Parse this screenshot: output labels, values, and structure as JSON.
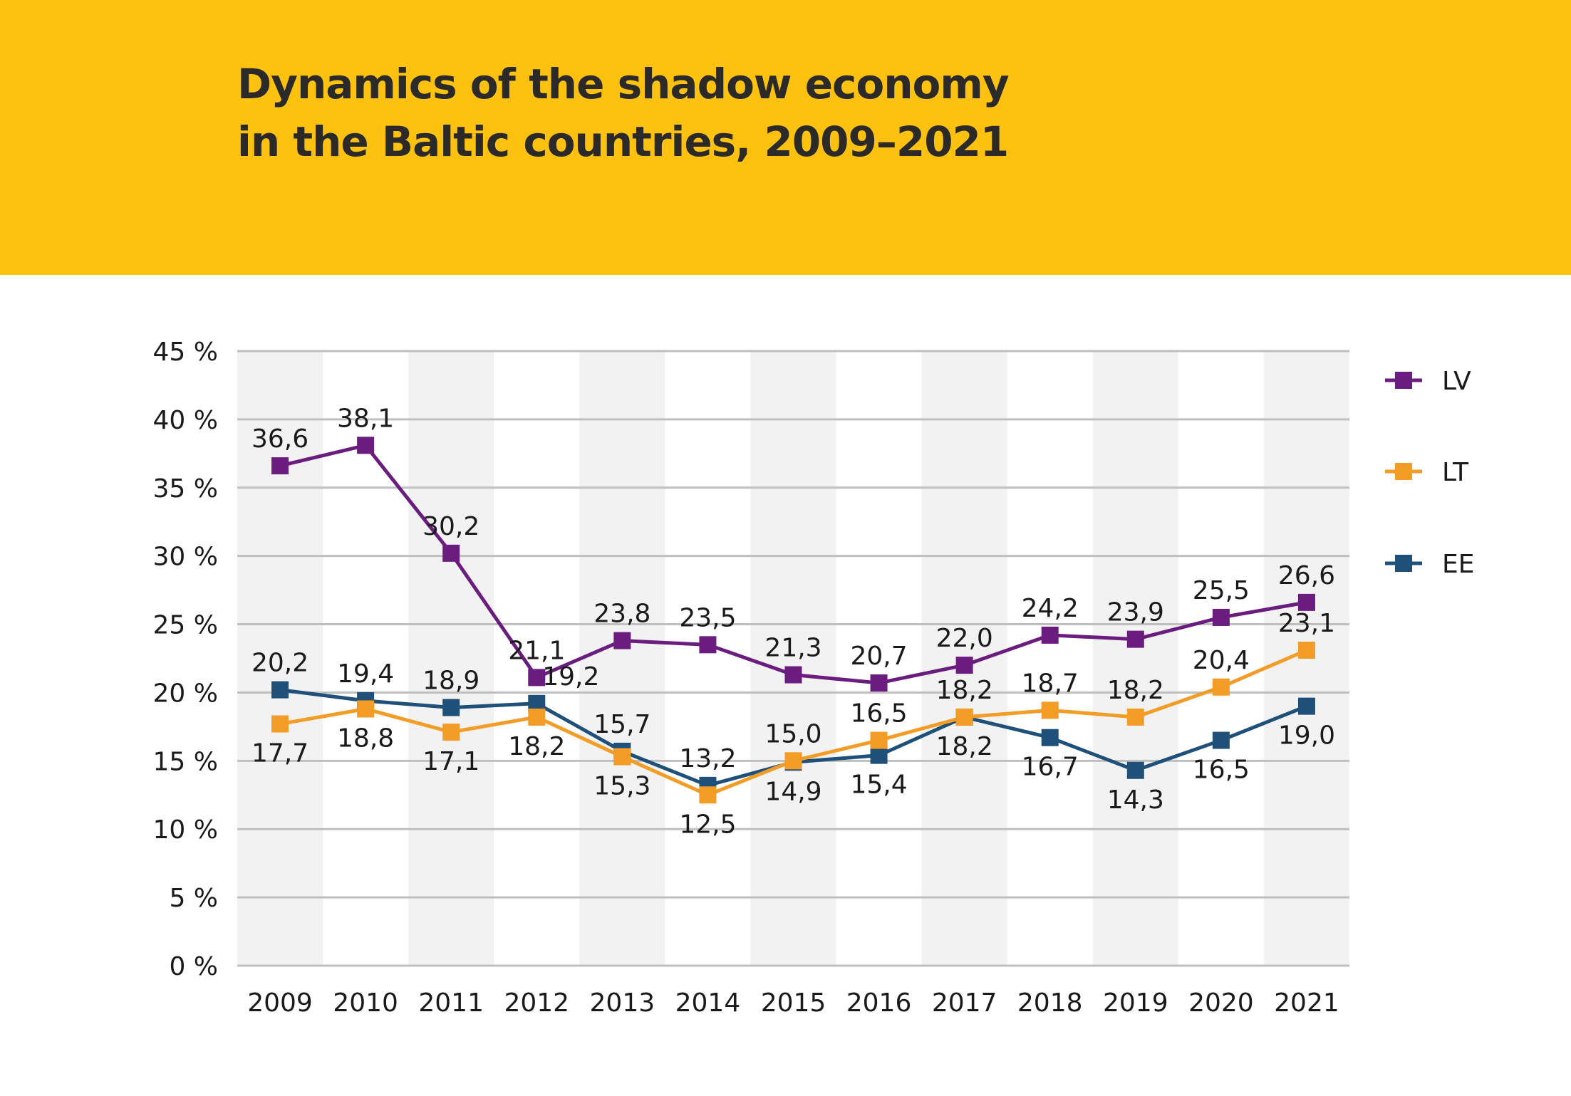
{
  "title_line1": "Dynamics of the shadow economy",
  "title_line2": "in the Baltic countries, 2009–2021",
  "colors": {
    "header_bg": "#FDC20F",
    "LV": "#6B1D7F",
    "LT": "#F39C26",
    "EE": "#1F5079",
    "band": "#F2F2F3",
    "grid": "#BFBFBF"
  },
  "chart_data": {
    "type": "line",
    "title": "Dynamics of the shadow economy in the Baltic countries, 2009–2021",
    "xlabel": "",
    "ylabel": "",
    "ylim": [
      0,
      45
    ],
    "yticks": [
      0,
      5,
      10,
      15,
      20,
      25,
      30,
      35,
      40,
      45
    ],
    "ytick_labels": [
      "0 %",
      "5 %",
      "10 %",
      "15 %",
      "20 %",
      "25 %",
      "30 %",
      "35 %",
      "40 %",
      "45 %"
    ],
    "categories": [
      "2009",
      "2010",
      "2011",
      "2012",
      "2013",
      "2014",
      "2015",
      "2016",
      "2017",
      "2018",
      "2019",
      "2020",
      "2021"
    ],
    "legend_position": "right",
    "series": [
      {
        "name": "LV",
        "values": [
          36.6,
          38.1,
          30.2,
          21.1,
          23.8,
          23.5,
          21.3,
          20.7,
          22.0,
          24.2,
          23.9,
          25.5,
          26.6
        ],
        "labels": [
          "36,6",
          "38,1",
          "30,2",
          "21,1",
          "23,8",
          "23,5",
          "21,3",
          "20,7",
          "22,0",
          "24,2",
          "23,9",
          "25,5",
          "26,6"
        ]
      },
      {
        "name": "LT",
        "values": [
          17.7,
          18.8,
          17.1,
          18.2,
          15.3,
          12.5,
          15.0,
          16.5,
          18.2,
          18.7,
          18.2,
          20.4,
          23.1
        ],
        "labels": [
          "17,7",
          "18,8",
          "17,1",
          "18,2",
          "15,3",
          "12,5",
          "15,0",
          "16,5",
          "18,2",
          "18,7",
          "18,2",
          "20,4",
          "23,1"
        ]
      },
      {
        "name": "EE",
        "values": [
          20.2,
          19.4,
          18.9,
          19.2,
          15.7,
          13.2,
          14.9,
          15.4,
          18.2,
          16.7,
          14.3,
          16.5,
          19.0
        ],
        "labels": [
          "20,2",
          "19,4",
          "18,9",
          "19,2",
          "15,7",
          "13,2",
          "14,9",
          "15,4",
          "18,2",
          "16,7",
          "14,3",
          "16,5",
          "19,0"
        ]
      }
    ]
  }
}
